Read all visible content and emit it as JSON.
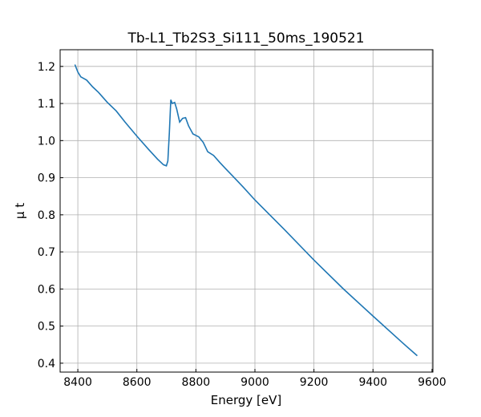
{
  "chart_data": {
    "type": "line",
    "title": "Tb-L1_Tb2S3_Si111_50ms_190521",
    "x_label": "Energy [eV]",
    "y_label": "μ t",
    "x": [
      8390,
      8400,
      8410,
      8430,
      8450,
      8470,
      8500,
      8530,
      8560,
      8600,
      8640,
      8670,
      8690,
      8700,
      8705,
      8710,
      8715,
      8720,
      8728,
      8735,
      8745,
      8755,
      8765,
      8775,
      8790,
      8810,
      8825,
      8840,
      8860,
      8880,
      8900,
      8930,
      8960,
      9000,
      9100,
      9200,
      9300,
      9400,
      9500,
      9550
    ],
    "series": [
      {
        "name": "μ t",
        "color": "#1f77b4",
        "values": [
          1.205,
          1.185,
          1.172,
          1.163,
          1.145,
          1.13,
          1.103,
          1.08,
          1.05,
          1.012,
          0.976,
          0.95,
          0.935,
          0.932,
          0.945,
          1.02,
          1.11,
          1.1,
          1.103,
          1.085,
          1.05,
          1.06,
          1.062,
          1.04,
          1.018,
          1.01,
          0.995,
          0.97,
          0.96,
          0.942,
          0.925,
          0.9,
          0.875,
          0.84,
          0.76,
          0.678,
          0.6,
          0.527,
          0.455,
          0.42
        ]
      }
    ],
    "xlim": [
      8340,
      9603
    ],
    "ylim": [
      0.376,
      1.245
    ],
    "xticks": [
      8400,
      8600,
      8800,
      9000,
      9200,
      9400,
      9600
    ],
    "yticks": [
      0.4,
      0.5,
      0.6,
      0.7,
      0.8,
      0.9,
      1.0,
      1.1,
      1.2
    ],
    "grid": true
  }
}
